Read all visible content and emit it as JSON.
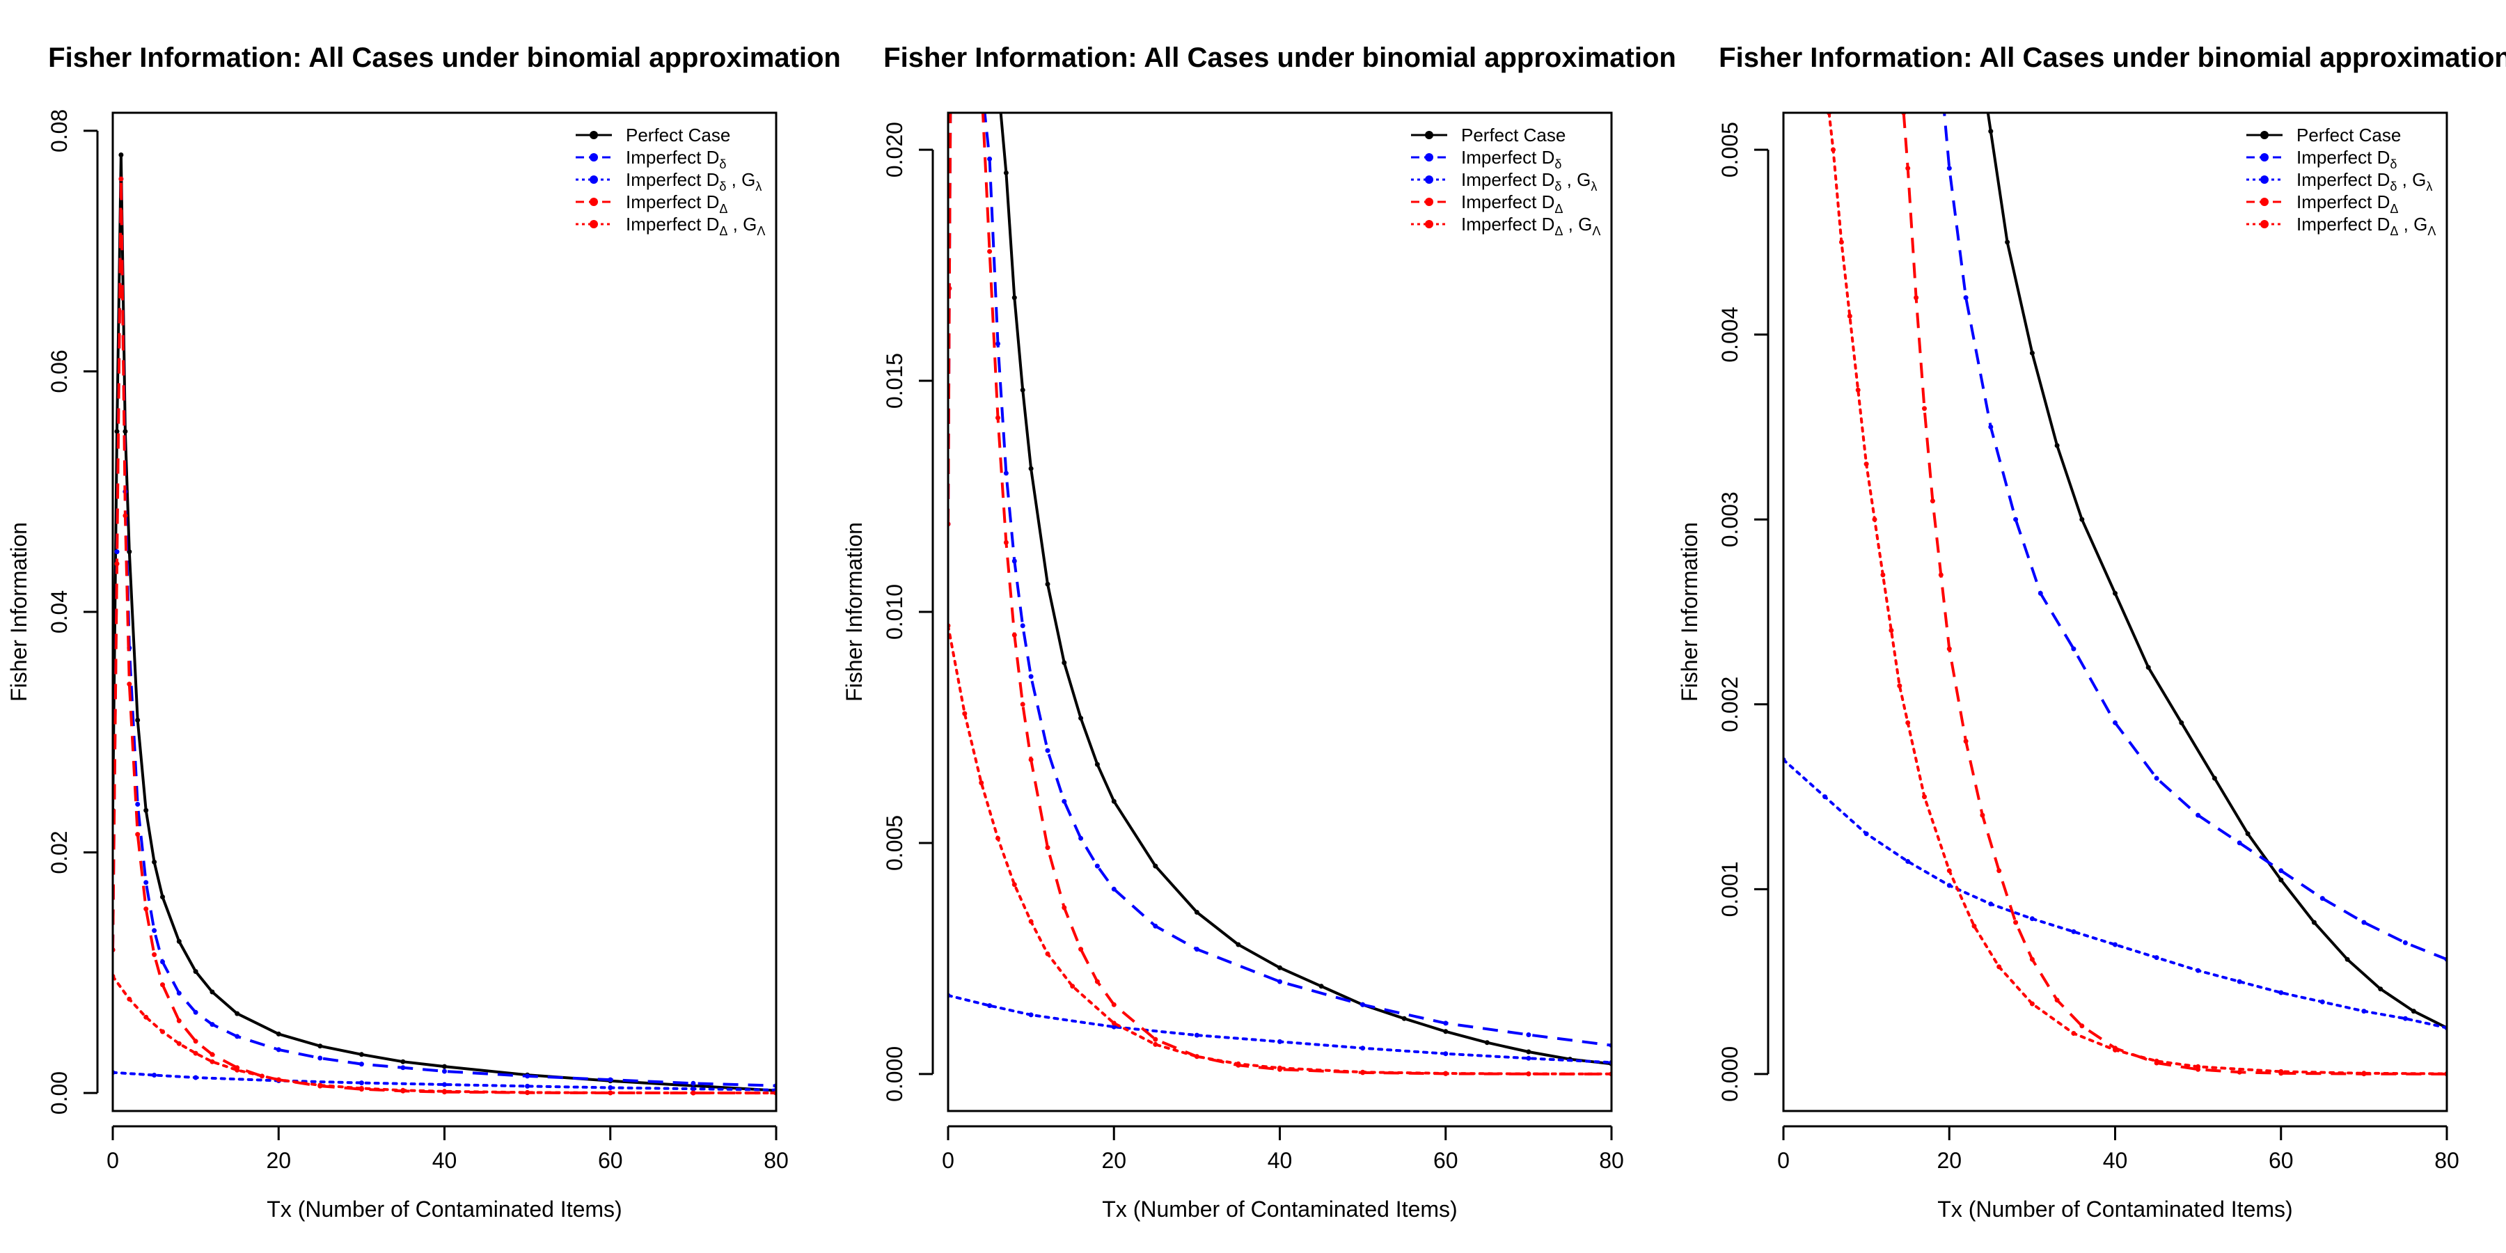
{
  "chart_data": [
    {
      "type": "line",
      "title": "Fisher Information: All Cases under binomial approximation",
      "xlabel": "Tx (Number of Contaminated Items)",
      "ylabel": "Fisher Information",
      "xlim": [
        0,
        80
      ],
      "ylim": [
        -0.0015,
        0.0815
      ],
      "xticks": [
        "0",
        "20",
        "40",
        "60",
        "80"
      ],
      "yticks": [
        "0.00",
        "0.02",
        "0.04",
        "0.06",
        "0.08"
      ],
      "ytick_values": [
        0,
        0.02,
        0.04,
        0.06,
        0.08
      ],
      "legend_position": "top-right",
      "legend": [
        {
          "label": "Perfect Case",
          "sub": ""
        },
        {
          "label": "Imperfect D",
          "sub": "δ"
        },
        {
          "label": "Imperfect D",
          "sub": "δ",
          "label2": " , G",
          "sub2": "λ"
        },
        {
          "label": "Imperfect D",
          "sub": "Δ"
        },
        {
          "label": "Imperfect D",
          "sub": "Δ",
          "label2": " , G",
          "sub2": "Λ"
        }
      ],
      "series": [
        {
          "name": "Perfect Case",
          "color": "#000000",
          "dash": "solid",
          "x": [
            0,
            0.5,
            1,
            1.5,
            2,
            3,
            4,
            5,
            6,
            8,
            10,
            12,
            15,
            20,
            25,
            30,
            35,
            40,
            50,
            60,
            70,
            80
          ],
          "y": [
            0.0235,
            0.055,
            0.078,
            0.055,
            0.045,
            0.031,
            0.0235,
            0.0192,
            0.0163,
            0.0126,
            0.0101,
            0.0084,
            0.0066,
            0.0049,
            0.0039,
            0.0032,
            0.0026,
            0.0022,
            0.0015,
            0.001,
            0.0006,
            0.0002
          ]
        },
        {
          "name": "Imperfect Dδ",
          "color": "#0000ff",
          "dash": "dashed",
          "x": [
            0,
            0.5,
            1,
            1.5,
            2,
            3,
            4,
            5,
            6,
            8,
            10,
            12,
            15,
            20,
            25,
            30,
            35,
            40,
            50,
            60,
            70,
            80
          ],
          "y": [
            0.0119,
            0.045,
            0.076,
            0.05,
            0.037,
            0.024,
            0.0175,
            0.0135,
            0.0109,
            0.0083,
            0.0067,
            0.0057,
            0.0047,
            0.0036,
            0.0029,
            0.0024,
            0.0021,
            0.0018,
            0.0014,
            0.0011,
            0.0008,
            0.0006
          ]
        },
        {
          "name": "Imperfect Dδ , Gλ",
          "color": "#0000ff",
          "dash": "dotted",
          "x": [
            0,
            5,
            10,
            20,
            30,
            40,
            50,
            60,
            70,
            80
          ],
          "y": [
            0.0017,
            0.00148,
            0.00128,
            0.00102,
            0.00084,
            0.0007,
            0.00056,
            0.00044,
            0.00034,
            0.00025
          ]
        },
        {
          "name": "Imperfect DΔ",
          "color": "#ff0000",
          "dash": "dashed",
          "x": [
            0,
            0.5,
            1,
            1.5,
            2,
            3,
            4,
            5,
            6,
            8,
            10,
            12,
            15,
            18,
            20,
            25,
            30,
            35,
            40,
            50,
            60,
            70,
            80
          ],
          "y": [
            0.0119,
            0.044,
            0.076,
            0.048,
            0.034,
            0.0215,
            0.0153,
            0.0115,
            0.009,
            0.006,
            0.0043,
            0.0032,
            0.0021,
            0.0014,
            0.0011,
            0.00058,
            0.00031,
            0.00016,
            8e-05,
            2e-05,
            5e-06,
            1.4e-06,
            4e-07
          ]
        },
        {
          "name": "Imperfect DΔ , GΛ",
          "color": "#ff0000",
          "dash": "dotted",
          "x": [
            0,
            2,
            4,
            6,
            8,
            10,
            12,
            15,
            20,
            25,
            30,
            35,
            40,
            50,
            60,
            70,
            80
          ],
          "y": [
            0.0097,
            0.0078,
            0.0063,
            0.0051,
            0.0041,
            0.0033,
            0.0026,
            0.0019,
            0.0011,
            0.00064,
            0.00038,
            0.00022,
            0.00013,
            4e-05,
            1.3e-05,
            4e-06,
            1.3e-06
          ]
        }
      ]
    },
    {
      "type": "line",
      "title": "Fisher Information: All Cases under binomial approximation",
      "xlabel": "Tx (Number of Contaminated Items)",
      "ylabel": "Fisher Information",
      "xlim": [
        0,
        80
      ],
      "ylim": [
        -0.0008,
        0.0208
      ],
      "xticks": [
        "0",
        "20",
        "40",
        "60",
        "80"
      ],
      "yticks": [
        "0.000",
        "0.005",
        "0.010",
        "0.015",
        "0.020"
      ],
      "ytick_values": [
        0,
        0.005,
        0.01,
        0.015,
        0.02
      ],
      "legend_position": "top-right",
      "legend": [
        {
          "label": "Perfect Case",
          "sub": ""
        },
        {
          "label": "Imperfect D",
          "sub": "δ"
        },
        {
          "label": "Imperfect D",
          "sub": "δ",
          "label2": " , G",
          "sub2": "λ"
        },
        {
          "label": "Imperfect D",
          "sub": "Δ"
        },
        {
          "label": "Imperfect D",
          "sub": "Δ",
          "label2": " , G",
          "sub2": "Λ"
        }
      ],
      "series": [
        {
          "name": "Perfect Case",
          "color": "#000000",
          "dash": "solid",
          "x": [
            6,
            7,
            8,
            9,
            10,
            12,
            14,
            16,
            18,
            20,
            25,
            30,
            35,
            40,
            45,
            50,
            55,
            60,
            65,
            70,
            75,
            80
          ],
          "y": [
            0.0215,
            0.0195,
            0.0168,
            0.0148,
            0.0131,
            0.0106,
            0.0089,
            0.0077,
            0.0067,
            0.0059,
            0.0045,
            0.0035,
            0.0028,
            0.0023,
            0.0019,
            0.0015,
            0.0012,
            0.00092,
            0.00068,
            0.00048,
            0.00032,
            0.00022
          ]
        },
        {
          "name": "Imperfect Dδ",
          "color": "#0000ff",
          "dash": "dashed",
          "x": [
            0,
            0.15,
            0.3,
            4,
            5,
            6,
            7,
            8,
            9,
            10,
            12,
            14,
            16,
            18,
            20,
            25,
            30,
            40,
            50,
            60,
            70,
            80
          ],
          "y": [
            0.0119,
            0.017,
            0.0215,
            0.0215,
            0.0198,
            0.0158,
            0.013,
            0.0111,
            0.0097,
            0.0086,
            0.007,
            0.0059,
            0.0051,
            0.0045,
            0.004,
            0.0032,
            0.0027,
            0.002,
            0.0015,
            0.0011,
            0.00085,
            0.00062
          ]
        },
        {
          "name": "Imperfect Dδ , Gλ",
          "color": "#0000ff",
          "dash": "dotted",
          "x": [
            0,
            5,
            10,
            20,
            30,
            40,
            50,
            60,
            70,
            80
          ],
          "y": [
            0.0017,
            0.00148,
            0.00128,
            0.00102,
            0.00084,
            0.0007,
            0.00056,
            0.00044,
            0.00034,
            0.00025
          ]
        },
        {
          "name": "Imperfect DΔ",
          "color": "#ff0000",
          "dash": "dashed",
          "x": [
            0,
            0.15,
            0.3,
            4,
            5,
            6,
            7,
            8,
            9,
            10,
            12,
            14,
            16,
            18,
            20,
            25,
            30,
            35,
            40,
            50,
            60,
            70,
            80
          ],
          "y": [
            0.0119,
            0.017,
            0.0215,
            0.0215,
            0.0178,
            0.0142,
            0.0115,
            0.0095,
            0.008,
            0.0068,
            0.0049,
            0.0036,
            0.0027,
            0.002,
            0.0015,
            0.00075,
            0.00038,
            0.00019,
            0.0001,
            3e-05,
            8e-06,
            2e-06,
            5e-07
          ]
        },
        {
          "name": "Imperfect DΔ , GΛ",
          "color": "#ff0000",
          "dash": "dotted",
          "x": [
            0,
            2,
            4,
            6,
            8,
            10,
            12,
            15,
            20,
            25,
            30,
            35,
            40,
            50,
            60,
            70,
            80
          ],
          "y": [
            0.0097,
            0.0078,
            0.0063,
            0.0051,
            0.0041,
            0.0033,
            0.0026,
            0.0019,
            0.0011,
            0.00064,
            0.00038,
            0.00022,
            0.00013,
            4e-05,
            1.3e-05,
            4e-06,
            1.3e-06
          ]
        }
      ]
    },
    {
      "type": "line",
      "title": "Fisher Information: All Cases under binomial approximation",
      "xlabel": "Tx (Number of Contaminated Items)",
      "ylabel": "Fisher Information",
      "xlim": [
        0,
        80
      ],
      "ylim": [
        -0.0002,
        0.0052
      ],
      "xticks": [
        "0",
        "20",
        "40",
        "60",
        "80"
      ],
      "yticks": [
        "0.000",
        "0.001",
        "0.002",
        "0.003",
        "0.004",
        "0.005"
      ],
      "ytick_values": [
        0,
        0.001,
        0.002,
        0.003,
        0.004,
        0.005
      ],
      "legend_position": "top-right",
      "legend": [
        {
          "label": "Perfect Case",
          "sub": ""
        },
        {
          "label": "Imperfect D",
          "sub": "δ"
        },
        {
          "label": "Imperfect D",
          "sub": "δ",
          "label2": " , G",
          "sub2": "λ"
        },
        {
          "label": "Imperfect D",
          "sub": "Δ"
        },
        {
          "label": "Imperfect D",
          "sub": "Δ",
          "label2": " , G",
          "sub2": "Λ"
        }
      ],
      "series": [
        {
          "name": "Perfect Case",
          "color": "#000000",
          "dash": "solid",
          "x": [
            24,
            25,
            27,
            30,
            33,
            36,
            40,
            44,
            48,
            52,
            56,
            60,
            64,
            68,
            72,
            76,
            80
          ],
          "y": [
            0.0054,
            0.0051,
            0.0045,
            0.0039,
            0.0034,
            0.003,
            0.0026,
            0.0022,
            0.0019,
            0.0016,
            0.0013,
            0.00105,
            0.00082,
            0.00062,
            0.00046,
            0.00034,
            0.00025
          ]
        },
        {
          "name": "Imperfect Dδ",
          "color": "#0000ff",
          "dash": "dashed",
          "x": [
            19,
            20,
            22,
            25,
            28,
            31,
            35,
            40,
            45,
            50,
            55,
            60,
            65,
            70,
            75,
            80
          ],
          "y": [
            0.0054,
            0.0049,
            0.0042,
            0.0035,
            0.003,
            0.0026,
            0.0023,
            0.0019,
            0.0016,
            0.0014,
            0.00125,
            0.0011,
            0.00095,
            0.00082,
            0.00071,
            0.00062
          ]
        },
        {
          "name": "Imperfect Dδ , Gλ",
          "color": "#0000ff",
          "dash": "dotted",
          "x": [
            0,
            5,
            10,
            15,
            20,
            25,
            30,
            35,
            40,
            45,
            50,
            55,
            60,
            65,
            70,
            75,
            80
          ],
          "y": [
            0.0017,
            0.0015,
            0.0013,
            0.00115,
            0.00102,
            0.00092,
            0.00084,
            0.00077,
            0.0007,
            0.00063,
            0.00056,
            0.0005,
            0.00044,
            0.00039,
            0.00034,
            0.0003,
            0.00025
          ]
        },
        {
          "name": "Imperfect DΔ",
          "color": "#ff0000",
          "dash": "dashed",
          "x": [
            14.5,
            15,
            16,
            17,
            18,
            19,
            20,
            22,
            24,
            26,
            28,
            30,
            33,
            36,
            40,
            45,
            50,
            55,
            60,
            70,
            80
          ],
          "y": [
            0.0052,
            0.0049,
            0.0042,
            0.0036,
            0.0031,
            0.0027,
            0.0023,
            0.0018,
            0.0014,
            0.0011,
            0.00082,
            0.00062,
            0.0004,
            0.00026,
            0.00014,
            6e-05,
            2.5e-05,
            1e-05,
            4e-06,
            6e-07,
            1e-07
          ]
        },
        {
          "name": "Imperfect DΔ , GΛ",
          "color": "#ff0000",
          "dash": "dotted",
          "x": [
            5.5,
            6,
            7,
            8,
            9,
            10,
            11,
            12,
            13,
            14,
            15,
            17,
            20,
            23,
            26,
            30,
            35,
            40,
            45,
            50,
            60,
            70,
            80
          ],
          "y": [
            0.0052,
            0.005,
            0.0045,
            0.0041,
            0.0037,
            0.0033,
            0.003,
            0.0027,
            0.0024,
            0.0021,
            0.0019,
            0.0015,
            0.0011,
            0.0008,
            0.00058,
            0.00038,
            0.00022,
            0.00013,
            7e-05,
            4e-05,
            1.3e-05,
            4e-06,
            1.3e-06
          ]
        }
      ]
    }
  ]
}
